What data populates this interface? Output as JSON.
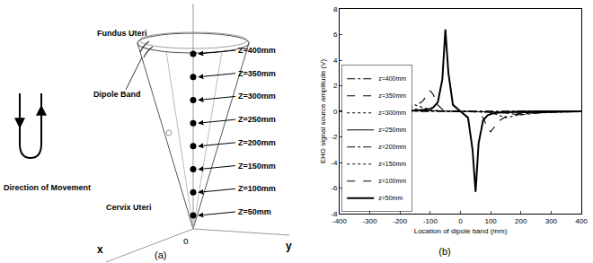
{
  "diagram": {
    "panel_label": "(a)",
    "fundus": "Fundus Uteri",
    "cervix": "Cervix Uteri",
    "dipole_band": "Dipole Band",
    "movement": "Direction of Movement",
    "axes": {
      "x": "x",
      "y": "y",
      "origin": "o"
    },
    "levels": [
      "Z=400mm",
      "Z=350mm",
      "Z=300mm",
      "Z=250mm",
      "Z=200mm",
      "Z=150mm",
      "Z=100mm",
      "Z=50mm"
    ]
  },
  "chart_data": {
    "type": "line",
    "panel_label": "(b)",
    "x_label": "Location of dipole band (mm)",
    "y_label": "EHG signal source amplitude (V)",
    "x": [
      -400,
      -300,
      -250,
      -200,
      -175,
      -150,
      -125,
      -110,
      -100,
      -90,
      -75,
      -60,
      -50,
      -40,
      -25,
      0,
      25,
      40,
      50,
      60,
      75,
      90,
      100,
      110,
      125,
      150,
      175,
      200,
      250,
      300,
      400
    ],
    "series": [
      {
        "name": "z=400mm",
        "color": "#000000",
        "line_style": "dashdot",
        "values": [
          0,
          0.01,
          0.01,
          0.01,
          0.01,
          0.01,
          0.01,
          0.01,
          0.01,
          0.01,
          0.01,
          0.01,
          0.01,
          0.01,
          0,
          0,
          0,
          -0.01,
          -0.01,
          -0.01,
          -0.01,
          -0.01,
          -0.01,
          -0.01,
          -0.01,
          -0.01,
          -0.01,
          -0.01,
          -0.01,
          -0.01,
          0
        ]
      },
      {
        "name": "z=350mm",
        "color": "#000000",
        "line_style": "dash",
        "values": [
          0.01,
          0.02,
          0.02,
          0.02,
          0.02,
          0.02,
          0.02,
          0.01,
          0.01,
          0.01,
          0.01,
          0.01,
          0.01,
          0.01,
          0,
          0,
          0,
          -0.01,
          -0.01,
          -0.01,
          -0.01,
          -0.01,
          -0.01,
          -0.01,
          -0.02,
          -0.02,
          -0.02,
          -0.02,
          -0.02,
          -0.02,
          -0.01
        ]
      },
      {
        "name": "z=300mm",
        "color": "#000000",
        "line_style": "dot",
        "values": [
          0.02,
          0.05,
          0.05,
          0.04,
          0.04,
          0.03,
          0.03,
          0.02,
          0.02,
          0.02,
          0.02,
          0.01,
          0.01,
          0.01,
          0,
          0,
          0,
          -0.01,
          -0.01,
          -0.01,
          -0.02,
          -0.02,
          -0.02,
          -0.02,
          -0.03,
          -0.03,
          -0.04,
          -0.04,
          -0.05,
          -0.05,
          -0.02
        ]
      },
      {
        "name": "z=250mm",
        "color": "#000000",
        "line_style": "solid",
        "values": [
          0.03,
          0.08,
          0.12,
          0.1,
          0.08,
          0.06,
          0.05,
          0.04,
          0.03,
          0.03,
          0.02,
          0.02,
          0.01,
          0.01,
          0,
          0,
          0,
          -0.01,
          -0.01,
          -0.02,
          -0.02,
          -0.03,
          -0.03,
          -0.04,
          -0.05,
          -0.06,
          -0.08,
          -0.1,
          -0.12,
          -0.08,
          -0.03
        ]
      },
      {
        "name": "z=200mm",
        "color": "#000000",
        "line_style": "dashdot",
        "values": [
          0.02,
          0.08,
          0.15,
          0.28,
          0.22,
          0.14,
          0.09,
          0.07,
          0.05,
          0.04,
          0.03,
          0.02,
          0.02,
          0.01,
          0,
          0,
          0,
          -0.01,
          -0.02,
          -0.02,
          -0.03,
          -0.04,
          -0.05,
          -0.07,
          -0.09,
          -0.14,
          -0.22,
          -0.28,
          -0.15,
          -0.08,
          -0.02
        ]
      },
      {
        "name": "z=150mm",
        "color": "#000000",
        "line_style": "dot",
        "values": [
          0.01,
          0.04,
          0.1,
          0.25,
          0.38,
          0.5,
          0.3,
          0.18,
          0.12,
          0.08,
          0.05,
          0.03,
          0.02,
          0.01,
          0,
          0,
          0,
          -0.01,
          -0.02,
          -0.03,
          -0.05,
          -0.08,
          -0.12,
          -0.18,
          -0.3,
          -0.5,
          -0.38,
          -0.25,
          -0.1,
          -0.04,
          -0.01
        ]
      },
      {
        "name": "z=100mm",
        "color": "#000000",
        "line_style": "dash",
        "values": [
          0,
          0.02,
          0.05,
          0.15,
          0.25,
          0.4,
          0.8,
          1.3,
          1.6,
          1.3,
          0.5,
          0.15,
          0.05,
          0.02,
          0,
          0,
          0,
          -0.02,
          -0.05,
          -0.15,
          -0.5,
          -1.3,
          -1.6,
          -1.3,
          -0.8,
          -0.4,
          -0.25,
          -0.15,
          -0.05,
          -0.02,
          0
        ]
      },
      {
        "name": "z=50mm",
        "color": "#000000",
        "line_style": "solid",
        "values": [
          0,
          0,
          0,
          0.02,
          0.03,
          0.05,
          0.1,
          0.15,
          0.2,
          0.3,
          0.7,
          2.5,
          6.4,
          3.0,
          0.5,
          0,
          -0.5,
          -3.0,
          -6.3,
          -2.5,
          -0.7,
          -0.3,
          -0.2,
          -0.15,
          -0.1,
          -0.05,
          -0.03,
          -0.02,
          0,
          0,
          0
        ]
      }
    ],
    "xlim": [
      -400,
      400
    ],
    "xticks": [
      -400,
      -300,
      -200,
      -100,
      0,
      100,
      200,
      300,
      400
    ],
    "ylim": [
      -8,
      8
    ],
    "yticks": [
      -8,
      -6,
      -4,
      -2,
      0,
      2,
      4,
      6,
      8
    ],
    "legend": "lower left",
    "grid": false
  }
}
